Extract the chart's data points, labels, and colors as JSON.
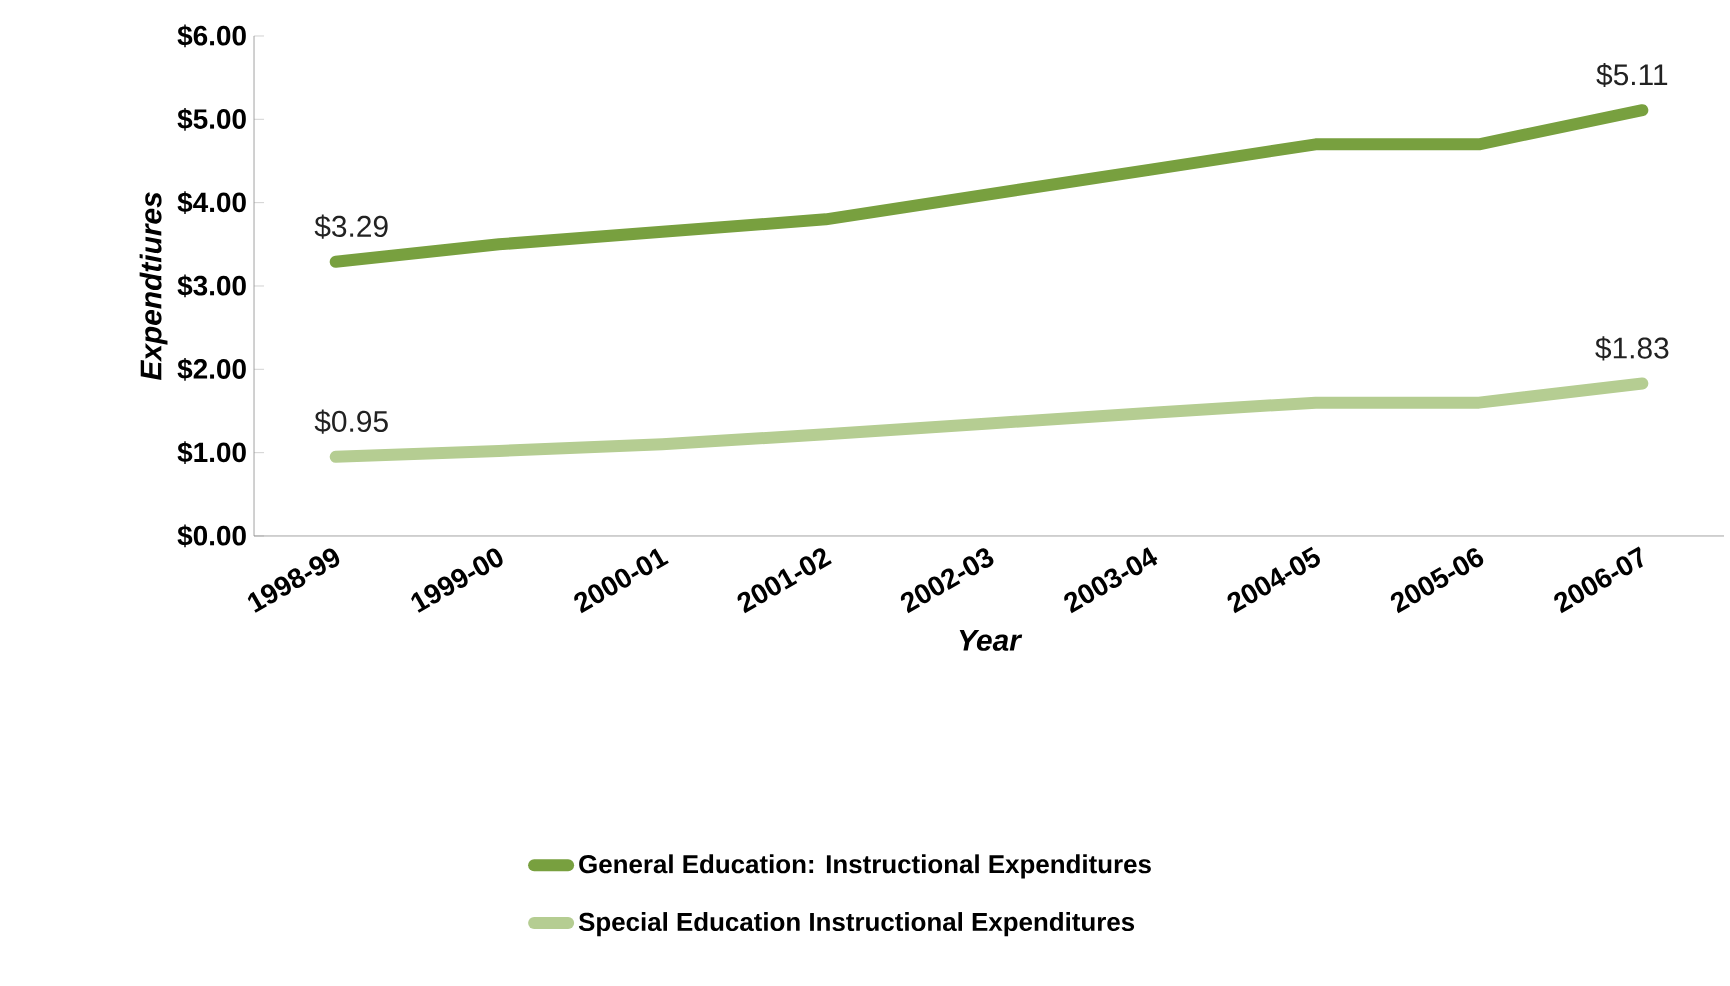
{
  "chart_data": {
    "type": "line",
    "xlabel": "Year",
    "ylabel": "Expendtiures",
    "categories": [
      "1998-99",
      "1999-00",
      "2000-01",
      "2001-02",
      "2002-03",
      "2003-04",
      "2004-05",
      "2005-06",
      "2006-07"
    ],
    "series": [
      {
        "name": "General Education: Instructional Expenditures",
        "color": "#78a03f",
        "values": [
          3.29,
          3.5,
          3.65,
          3.8,
          4.1,
          4.4,
          4.7,
          4.7,
          5.11
        ],
        "value_labels": [
          "$3.29",
          null,
          null,
          null,
          null,
          null,
          null,
          null,
          "$5.11"
        ]
      },
      {
        "name": "Special Education Instructional Expenditures",
        "color": "#b5cd92",
        "values": [
          0.95,
          1.02,
          1.1,
          1.22,
          1.35,
          1.48,
          1.6,
          1.6,
          1.83
        ],
        "value_labels": [
          "$0.95",
          null,
          null,
          null,
          null,
          null,
          null,
          null,
          "$1.83"
        ]
      }
    ],
    "ylim": [
      0,
      6
    ],
    "yticks": [
      {
        "value": 0,
        "label": "$0.00"
      },
      {
        "value": 1,
        "label": "$1.00"
      },
      {
        "value": 2,
        "label": "$2.00"
      },
      {
        "value": 3,
        "label": "$3.00"
      },
      {
        "value": 4,
        "label": "$4.00"
      },
      {
        "value": 5,
        "label": "$5.00"
      },
      {
        "value": 6,
        "label": "$6.00"
      }
    ],
    "grid": false,
    "legend": "bottom",
    "marker": "none",
    "line_style": "solid"
  }
}
